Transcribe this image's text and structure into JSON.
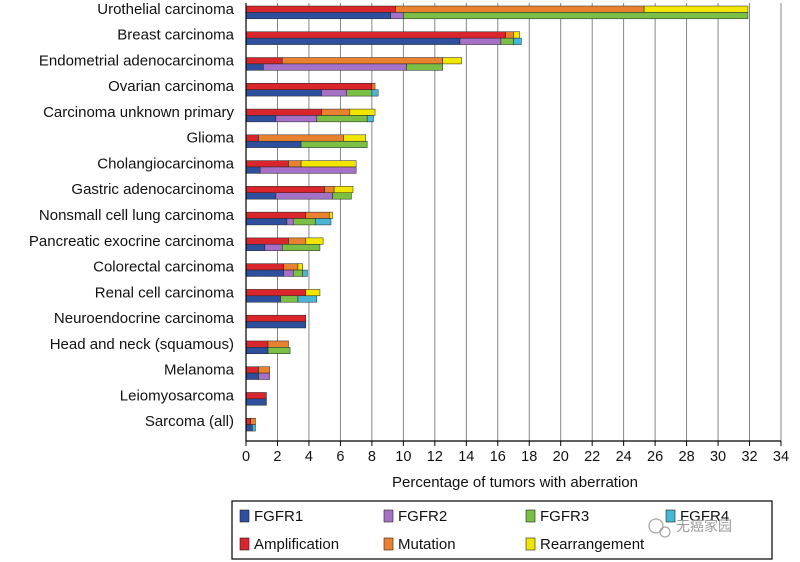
{
  "chart_data": {
    "type": "bar",
    "orientation": "horizontal",
    "xlabel": "Percentage of tumors with aberration",
    "xlim": [
      0,
      34
    ],
    "xticks": [
      0,
      2,
      4,
      6,
      8,
      10,
      12,
      14,
      16,
      18,
      20,
      22,
      24,
      26,
      28,
      30,
      32,
      34
    ],
    "grid": "vertical",
    "categories": [
      "Urothelial carcinoma",
      "Breast carcinoma",
      "Endometrial adenocarcinoma",
      "Ovarian carcinoma",
      "Carcinoma unknown primary",
      "Glioma",
      "Cholangiocarcinoma",
      "Gastric adenocarcinoma",
      "Nonsmall cell lung carcinoma",
      "Pancreatic exocrine carcinoma",
      "Colorectal carcinoma",
      "Renal cell carcinoma",
      "Neuroendocrine carcinoma",
      "Head and neck (squamous)",
      "Melanoma",
      "Leiomyosarcoma",
      "Sarcoma (all)"
    ],
    "aberration_series": [
      {
        "name": "Amplification",
        "color": "#d9262c",
        "values": [
          9.5,
          16.5,
          2.3,
          8.0,
          4.8,
          0.8,
          2.7,
          5.0,
          3.8,
          2.7,
          2.4,
          3.8,
          3.8,
          1.4,
          0.8,
          1.3,
          0.3
        ]
      },
      {
        "name": "Mutation",
        "color": "#e8822e",
        "values": [
          15.8,
          0.5,
          10.2,
          0.2,
          1.8,
          5.4,
          0.8,
          0.6,
          1.5,
          1.1,
          0.9,
          0,
          0,
          1.3,
          0.7,
          0,
          0.3
        ]
      },
      {
        "name": "Rearrangement",
        "color": "#f2e600",
        "values": [
          6.6,
          0.4,
          1.2,
          0,
          1.6,
          1.4,
          3.5,
          1.2,
          0.2,
          1.1,
          0.3,
          0.9,
          0,
          0,
          0,
          0,
          0
        ]
      }
    ],
    "gene_series": [
      {
        "name": "FGFR1",
        "color": "#2e4f9e",
        "values": [
          9.2,
          13.6,
          1.1,
          4.8,
          1.9,
          3.5,
          0.9,
          1.9,
          2.6,
          1.2,
          2.4,
          2.2,
          3.8,
          1.4,
          0.8,
          1.3,
          0.4
        ]
      },
      {
        "name": "FGFR2",
        "color": "#a571c6",
        "values": [
          0.8,
          2.6,
          9.1,
          1.6,
          2.6,
          0,
          6.1,
          3.6,
          0.4,
          1.1,
          0.6,
          0,
          0,
          0,
          0.7,
          0,
          0
        ]
      },
      {
        "name": "FGFR3",
        "color": "#7bbf44",
        "values": [
          21.9,
          0.8,
          2.3,
          1.6,
          3.2,
          4.2,
          0,
          1.2,
          1.4,
          2.4,
          0.6,
          1.1,
          0,
          1.4,
          0,
          0,
          0
        ]
      },
      {
        "name": "FGFR4",
        "color": "#49b6d6",
        "values": [
          0,
          0.5,
          0,
          0.4,
          0.4,
          0,
          0,
          0,
          1.0,
          0,
          0.3,
          1.2,
          0,
          0,
          0,
          0,
          0.2
        ]
      }
    ],
    "legend": {
      "placement": "bottom",
      "items": [
        {
          "label": "FGFR1",
          "color": "#2e4f9e"
        },
        {
          "label": "FGFR2",
          "color": "#a571c6"
        },
        {
          "label": "FGFR3",
          "color": "#7bbf44"
        },
        {
          "label": "FGFR4",
          "color": "#49b6d6"
        },
        {
          "label": "Amplification",
          "color": "#d9262c"
        },
        {
          "label": "Mutation",
          "color": "#e8822e"
        },
        {
          "label": "Rearrangement",
          "color": "#f2e600"
        }
      ]
    }
  },
  "watermark": "无癌家园"
}
